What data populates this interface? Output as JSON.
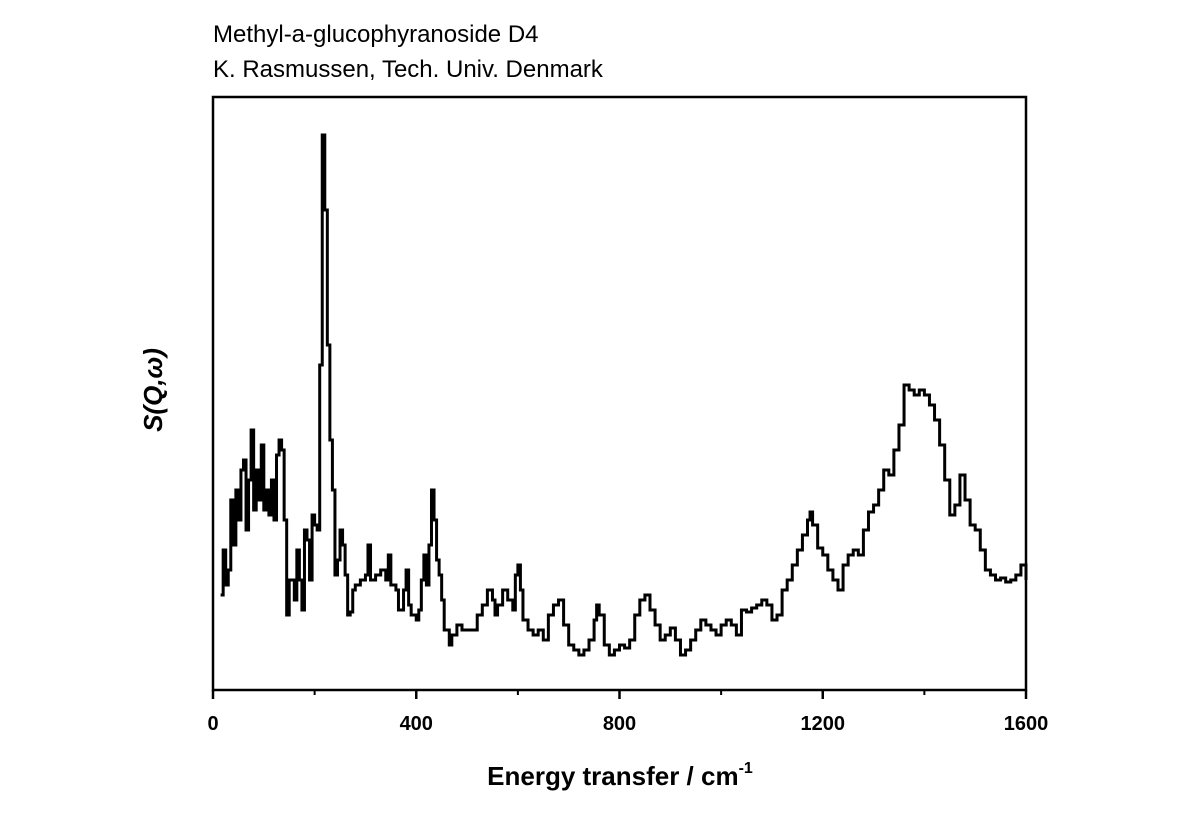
{
  "chart_data": {
    "type": "line",
    "step": true,
    "title_lines": [
      "Methyl-a-glucophyranoside D4",
      "K. Rasmussen, Tech. Univ. Denmark"
    ],
    "xlabel": "Energy transfer / cm",
    "xlabel_superscript": "-1",
    "ylabel": "S(Q,ω)",
    "xlim": [
      0,
      1600
    ],
    "xticks": [
      0,
      400,
      800,
      1200,
      1600
    ],
    "xminorticks": [
      200,
      600,
      1000,
      1400
    ],
    "ylim": [
      0,
      593
    ],
    "color": "#000000",
    "x": [
      15,
      20,
      25,
      30,
      35,
      40,
      45,
      50,
      55,
      60,
      65,
      70,
      75,
      80,
      85,
      90,
      95,
      100,
      105,
      110,
      115,
      120,
      125,
      130,
      135,
      140,
      145,
      150,
      155,
      160,
      165,
      170,
      175,
      180,
      185,
      190,
      195,
      200,
      205,
      210,
      215,
      220,
      225,
      230,
      235,
      240,
      245,
      250,
      255,
      260,
      265,
      270,
      275,
      280,
      290,
      300,
      305,
      310,
      320,
      330,
      340,
      345,
      350,
      360,
      365,
      375,
      380,
      385,
      390,
      400,
      405,
      410,
      415,
      420,
      425,
      430,
      435,
      440,
      445,
      450,
      455,
      465,
      470,
      480,
      490,
      500,
      510,
      520,
      530,
      540,
      550,
      555,
      560,
      570,
      580,
      590,
      595,
      600,
      605,
      610,
      620,
      630,
      640,
      650,
      660,
      670,
      680,
      690,
      700,
      710,
      720,
      730,
      740,
      750,
      755,
      760,
      770,
      780,
      790,
      800,
      810,
      820,
      830,
      840,
      850,
      860,
      870,
      880,
      890,
      900,
      910,
      920,
      930,
      940,
      950,
      960,
      970,
      980,
      990,
      1000,
      1010,
      1020,
      1030,
      1040,
      1050,
      1060,
      1070,
      1080,
      1090,
      1100,
      1110,
      1120,
      1130,
      1140,
      1150,
      1160,
      1170,
      1175,
      1180,
      1190,
      1200,
      1210,
      1220,
      1230,
      1240,
      1250,
      1260,
      1270,
      1280,
      1290,
      1300,
      1310,
      1320,
      1330,
      1340,
      1350,
      1360,
      1370,
      1380,
      1390,
      1400,
      1410,
      1420,
      1430,
      1440,
      1450,
      1460,
      1470,
      1480,
      1490,
      1500,
      1510,
      1520,
      1530,
      1540,
      1550,
      1560,
      1570,
      1580,
      1590,
      1600
    ],
    "values": [
      95,
      140,
      105,
      120,
      190,
      145,
      200,
      170,
      220,
      230,
      160,
      210,
      260,
      180,
      220,
      190,
      245,
      180,
      200,
      175,
      210,
      170,
      235,
      250,
      240,
      170,
      75,
      110,
      110,
      90,
      140,
      110,
      80,
      160,
      150,
      110,
      175,
      165,
      160,
      325,
      555,
      480,
      345,
      250,
      200,
      115,
      130,
      160,
      145,
      115,
      75,
      78,
      100,
      105,
      110,
      115,
      145,
      110,
      115,
      120,
      110,
      135,
      105,
      100,
      80,
      100,
      120,
      85,
      75,
      70,
      80,
      110,
      135,
      105,
      145,
      200,
      170,
      130,
      115,
      90,
      60,
      45,
      55,
      65,
      60,
      60,
      60,
      75,
      85,
      100,
      90,
      75,
      85,
      100,
      90,
      80,
      115,
      125,
      100,
      70,
      60,
      55,
      60,
      50,
      75,
      85,
      90,
      65,
      45,
      40,
      35,
      40,
      50,
      70,
      85,
      75,
      45,
      35,
      40,
      45,
      42,
      50,
      75,
      90,
      95,
      80,
      65,
      50,
      55,
      62,
      50,
      35,
      40,
      50,
      60,
      70,
      65,
      60,
      55,
      65,
      70,
      65,
      55,
      80,
      78,
      82,
      85,
      90,
      85,
      70,
      75,
      100,
      110,
      125,
      140,
      155,
      170,
      178,
      165,
      142,
      135,
      120,
      110,
      100,
      125,
      135,
      140,
      135,
      160,
      178,
      185,
      200,
      220,
      215,
      240,
      265,
      305,
      300,
      295,
      300,
      295,
      285,
      270,
      245,
      210,
      175,
      185,
      215,
      190,
      165,
      160,
      140,
      120,
      115,
      110,
      112,
      108,
      110,
      115,
      125,
      110
    ]
  }
}
